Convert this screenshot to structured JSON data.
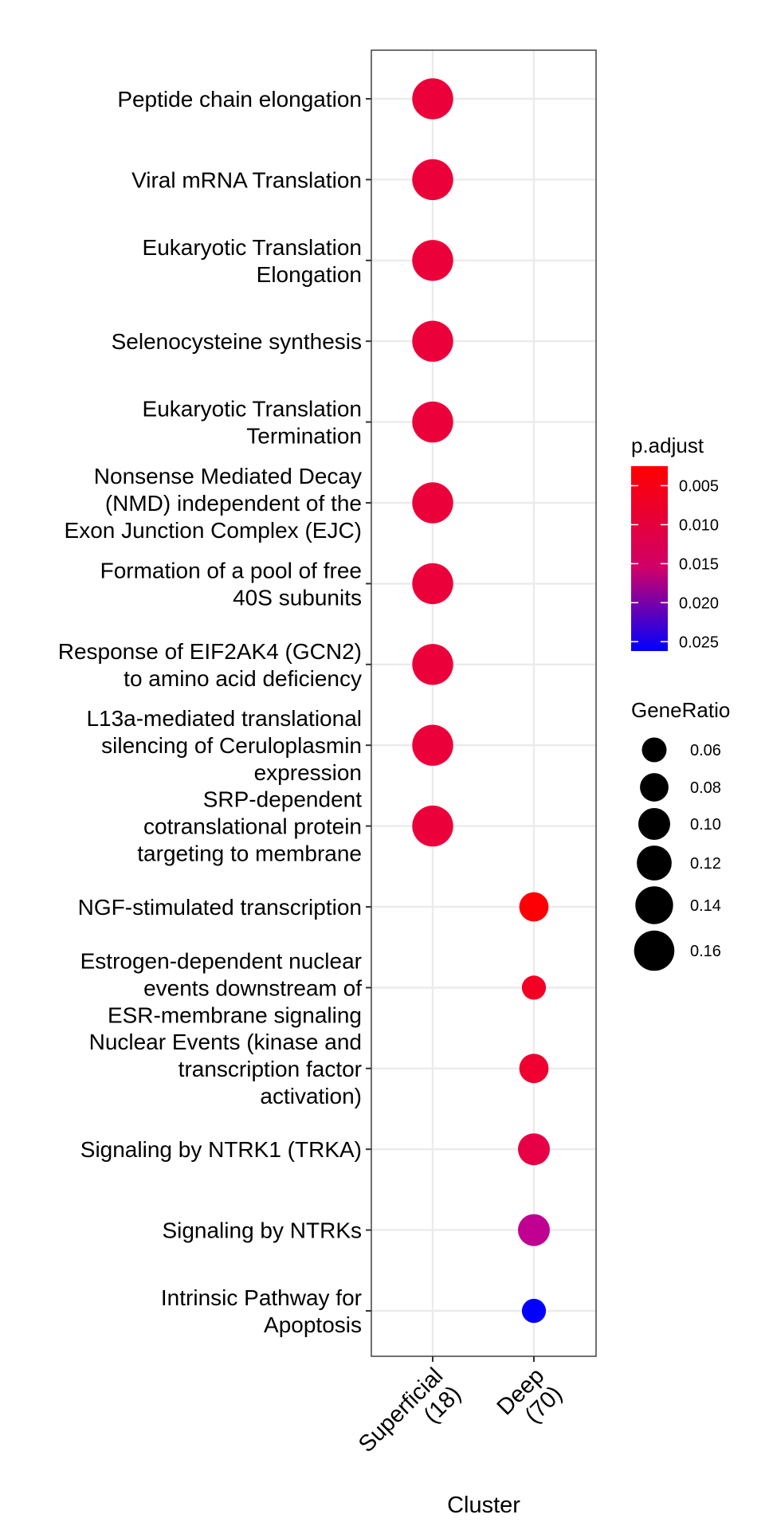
{
  "chart_data": {
    "type": "scatter",
    "xlabel": "Cluster",
    "ylabel": "",
    "x_categories": [
      [
        "Superficial",
        "(18)"
      ],
      [
        "Deep",
        "(70)"
      ]
    ],
    "y_categories": [
      [
        "Peptide chain elongation"
      ],
      [
        "Viral mRNA Translation"
      ],
      [
        "Eukaryotic Translation",
        "Elongation"
      ],
      [
        "Selenocysteine synthesis"
      ],
      [
        "Eukaryotic Translation",
        "Termination"
      ],
      [
        "Nonsense Mediated Decay",
        "(NMD) independent of the",
        "Exon Junction Complex (EJC)"
      ],
      [
        "Formation of a pool of free",
        "40S subunits"
      ],
      [
        "Response of EIF2AK4 (GCN2)",
        "to amino acid deficiency"
      ],
      [
        "L13a-mediated translational",
        "silencing of Ceruloplasmin",
        "expression"
      ],
      [
        "SRP-dependent",
        "cotranslational protein",
        "targeting to membrane"
      ],
      [
        "NGF-stimulated transcription"
      ],
      [
        "Estrogen-dependent nuclear",
        "events downstream of",
        "ESR-membrane signaling"
      ],
      [
        "Nuclear Events (kinase and",
        "transcription factor",
        "activation)"
      ],
      [
        "Signaling by NTRK1 (TRKA)"
      ],
      [
        "Signaling by NTRKs"
      ],
      [
        "Intrinsic Pathway for",
        "Apoptosis"
      ]
    ],
    "points": [
      {
        "x": 0,
        "y": 0,
        "gene_ratio": 0.165,
        "p_adjust": 0.0072
      },
      {
        "x": 0,
        "y": 1,
        "gene_ratio": 0.165,
        "p_adjust": 0.0072
      },
      {
        "x": 0,
        "y": 2,
        "gene_ratio": 0.165,
        "p_adjust": 0.0072
      },
      {
        "x": 0,
        "y": 3,
        "gene_ratio": 0.165,
        "p_adjust": 0.0072
      },
      {
        "x": 0,
        "y": 4,
        "gene_ratio": 0.165,
        "p_adjust": 0.0072
      },
      {
        "x": 0,
        "y": 5,
        "gene_ratio": 0.165,
        "p_adjust": 0.0072
      },
      {
        "x": 0,
        "y": 6,
        "gene_ratio": 0.165,
        "p_adjust": 0.0072
      },
      {
        "x": 0,
        "y": 7,
        "gene_ratio": 0.165,
        "p_adjust": 0.0072
      },
      {
        "x": 0,
        "y": 8,
        "gene_ratio": 0.165,
        "p_adjust": 0.0072
      },
      {
        "x": 0,
        "y": 9,
        "gene_ratio": 0.165,
        "p_adjust": 0.0072
      },
      {
        "x": 1,
        "y": 10,
        "gene_ratio": 0.085,
        "p_adjust": 0.003
      },
      {
        "x": 1,
        "y": 11,
        "gene_ratio": 0.057,
        "p_adjust": 0.0055
      },
      {
        "x": 1,
        "y": 12,
        "gene_ratio": 0.085,
        "p_adjust": 0.0065
      },
      {
        "x": 1,
        "y": 13,
        "gene_ratio": 0.1,
        "p_adjust": 0.0085
      },
      {
        "x": 1,
        "y": 14,
        "gene_ratio": 0.1,
        "p_adjust": 0.016
      },
      {
        "x": 1,
        "y": 15,
        "gene_ratio": 0.057,
        "p_adjust": 0.026
      }
    ],
    "color_legend": {
      "title": "p.adjust",
      "ticks": [
        0.005,
        0.01,
        0.015,
        0.02,
        0.025
      ],
      "tick_labels": [
        "0.005",
        "0.010",
        "0.015",
        "0.020",
        "0.025"
      ],
      "range": [
        0.0025,
        0.0262
      ],
      "low_color": "#ff0000",
      "high_color": "#0000ff"
    },
    "size_legend": {
      "title": "GeneRatio",
      "values": [
        0.06,
        0.08,
        0.1,
        0.12,
        0.14,
        0.16
      ],
      "labels": [
        "0.06",
        "0.08",
        "0.10",
        "0.12",
        "0.14",
        "0.16"
      ]
    },
    "grid": true,
    "legend_position": "right"
  }
}
